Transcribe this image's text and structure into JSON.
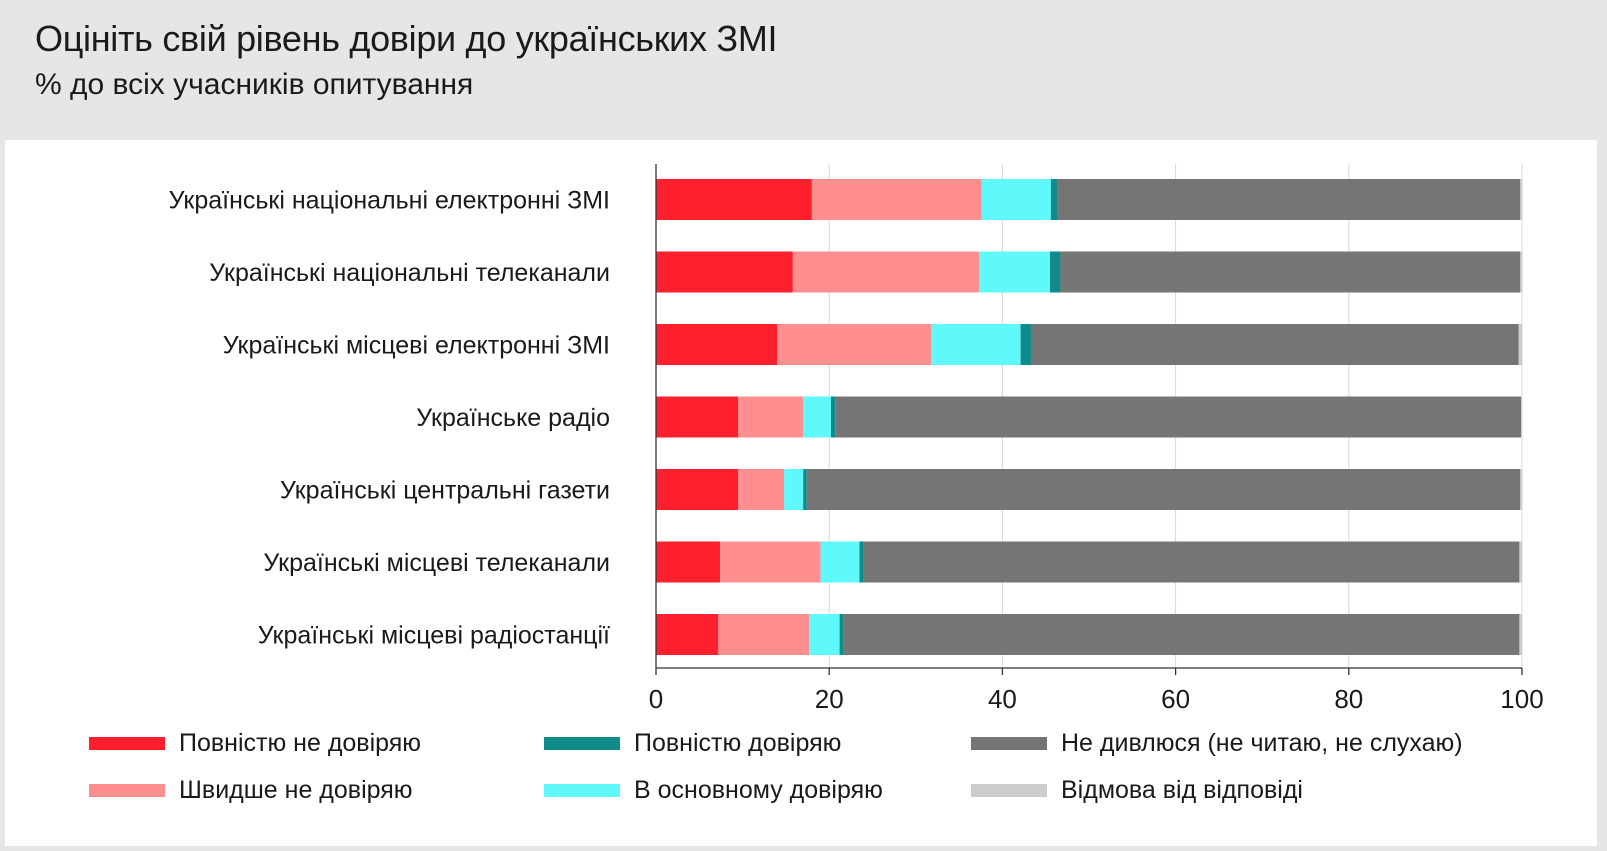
{
  "header": {
    "title": "Оцініть свій рівень довіри до українських ЗМІ",
    "subtitle": "% до всіх учасників опитування"
  },
  "chart_data": {
    "type": "bar",
    "orientation": "horizontal",
    "stacked": true,
    "categories": [
      "Українські національні електронні ЗМІ",
      "Українські національні телеканали",
      "Українські місцеві електронні ЗМІ",
      "Українське радіо",
      "Українські центральні газети",
      "Українські місцеві телеканали",
      "Українські місцеві радіостанції"
    ],
    "series": [
      {
        "name": "Повністю не довіряю",
        "color": "#ff1f2d",
        "values": [
          18.0,
          15.8,
          14.0,
          9.5,
          9.5,
          7.4,
          7.2
        ]
      },
      {
        "name": "Швидше не довіряю",
        "color": "#ff8f8f",
        "values": [
          19.6,
          21.5,
          17.8,
          7.5,
          5.3,
          11.6,
          10.5
        ]
      },
      {
        "name": "В основному довіряю",
        "color": "#5ff8fb",
        "values": [
          8.0,
          8.2,
          10.3,
          3.2,
          2.2,
          4.5,
          3.5
        ]
      },
      {
        "name": "Повністю довіряю",
        "color": "#0f8c89",
        "values": [
          0.8,
          1.2,
          1.2,
          0.5,
          0.4,
          0.5,
          0.4
        ]
      },
      {
        "name": "Не дивлюся (не читаю, не слухаю)",
        "color": "#757575",
        "values": [
          53.4,
          53.1,
          56.3,
          79.2,
          82.4,
          75.7,
          78.1
        ]
      },
      {
        "name": "Відмова від відповіді",
        "color": "#cccccc",
        "values": [
          0.2,
          0.2,
          0.4,
          0.1,
          0.2,
          0.3,
          0.3
        ]
      }
    ],
    "xlim": [
      0,
      100
    ],
    "xticks": [
      0,
      20,
      40,
      60,
      80,
      100
    ],
    "grid": true,
    "legend_position": "bottom"
  },
  "legend": {
    "items": [
      {
        "label": "Повністю не довіряю",
        "color": "#ff1f2d"
      },
      {
        "label": "Повністю довіряю",
        "color": "#0f8c89"
      },
      {
        "label": "Не дивлюся (не читаю, не слухаю)",
        "color": "#757575"
      },
      {
        "label": "Швидше не довіряю",
        "color": "#ff8f8f"
      },
      {
        "label": "В основному довіряю",
        "color": "#5ff8fb"
      },
      {
        "label": "Відмова від відповіді",
        "color": "#cccccc"
      }
    ]
  }
}
